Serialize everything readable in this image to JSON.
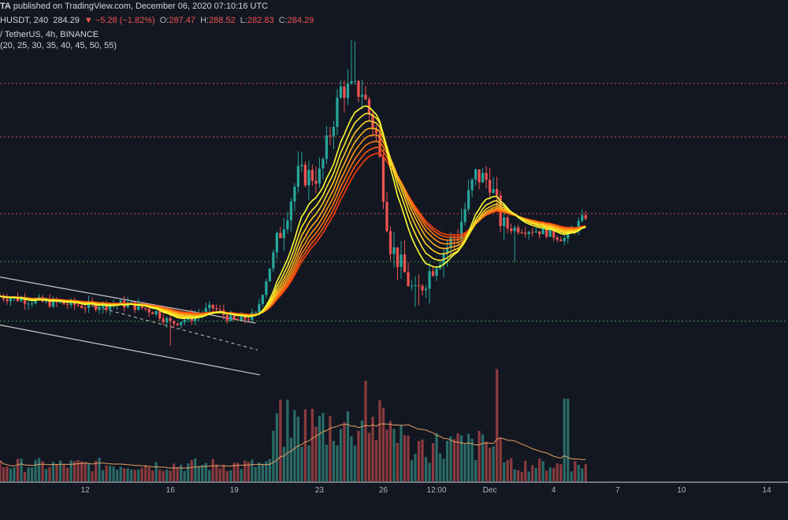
{
  "header": {
    "line1": {
      "author_fragment": "TA",
      "published": "published on TradingView.com, December 06, 2020 07:10:16 UTC"
    },
    "line2": {
      "symbol_fragment": "HUSDT, 240",
      "last": "284.29",
      "change": "−5.28 (−1.82%)",
      "o_label": "O:",
      "o_val": "287.47",
      "h_label": "H:",
      "h_val": "288.52",
      "l_label": "L:",
      "l_val": "282.83",
      "c_label": "C:",
      "c_val": "284.29"
    },
    "line3": "/ TetherUS, 4h, BINANCE",
    "line4": "(20, 25, 30, 35, 40, 45, 50, 55)"
  },
  "colors": {
    "background": "#131722",
    "up": "#26a69a",
    "down": "#ef5350",
    "vol_up": "#2a6b68",
    "vol_down": "#8b3b3e",
    "red_level": "#ef5350",
    "green_level": "#4caf50",
    "channel": "#c8c8c8",
    "vol_ma": "#e0a060",
    "ribbon": [
      "#ffff33",
      "#ffe62a",
      "#ffcc22",
      "#ffb01c",
      "#ff9416",
      "#ff7812",
      "#ff5a0e",
      "#ff3c0a"
    ]
  },
  "chart_data": {
    "type": "candlestick",
    "symbol": "HUSDT",
    "exchange": "BINANCE",
    "interval": "4h",
    "x_ticks": [
      "12",
      "16",
      "19",
      "23",
      "26",
      "12:00",
      "Dec",
      "4",
      "7",
      "10",
      "14"
    ],
    "x_tick_days": [
      12,
      16,
      19,
      23,
      26,
      28.5,
      31,
      34,
      37,
      40,
      44
    ],
    "x_range": [
      8,
      45
    ],
    "y_range": [
      170,
      400
    ],
    "horizontal_levels": {
      "red_dashed": [
        373,
        345,
        305
      ],
      "green_dotted": [
        280,
        249
      ]
    },
    "anchors": [
      {
        "d": 8,
        "p": 262
      },
      {
        "d": 10,
        "p": 259
      },
      {
        "d": 12,
        "p": 257
      },
      {
        "d": 14,
        "p": 258
      },
      {
        "d": 15.3,
        "p": 254
      },
      {
        "d": 16,
        "p": 248
      },
      {
        "d": 17,
        "p": 251
      },
      {
        "d": 18,
        "p": 256
      },
      {
        "d": 19,
        "p": 249
      },
      {
        "d": 20,
        "p": 252
      },
      {
        "d": 21,
        "p": 290
      },
      {
        "d": 22,
        "p": 325
      },
      {
        "d": 23,
        "p": 325
      },
      {
        "d": 24,
        "p": 370
      },
      {
        "d": 25,
        "p": 369
      },
      {
        "d": 25.7,
        "p": 345
      },
      {
        "d": 26.3,
        "p": 290
      },
      {
        "d": 27.5,
        "p": 262
      },
      {
        "d": 28.5,
        "p": 281
      },
      {
        "d": 29.5,
        "p": 295
      },
      {
        "d": 30.3,
        "p": 325
      },
      {
        "d": 31,
        "p": 322
      },
      {
        "d": 31.6,
        "p": 298
      },
      {
        "d": 33.5,
        "p": 296
      },
      {
        "d": 34.5,
        "p": 292
      },
      {
        "d": 35.5,
        "p": 304
      }
    ],
    "ema_periods": [
      20,
      25,
      30,
      35,
      40,
      45,
      50,
      55
    ],
    "annotations": [
      "descending channel (white lines)",
      "dashed midline"
    ]
  }
}
